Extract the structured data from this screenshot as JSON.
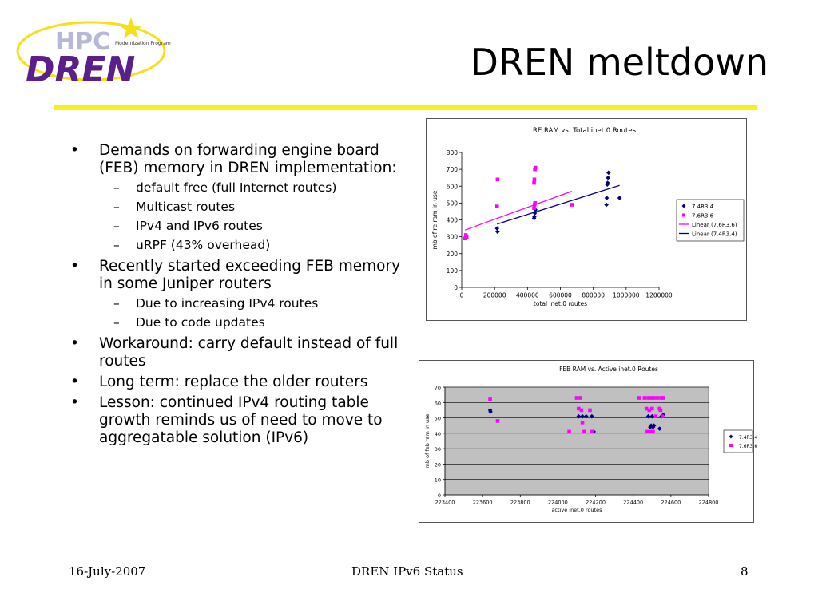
{
  "slide": {
    "title": "DREN meltdown",
    "logo": {
      "text_main": "DREN",
      "text_back": "HPC",
      "text_small": "Modernization Program"
    },
    "bullets": [
      {
        "text": "Demands on forwarding engine board (FEB) memory in DREN implementation:",
        "sub": [
          "default free (full Internet routes)",
          "Multicast routes",
          "IPv4 and IPv6 routes",
          "uRPF (43% overhead)"
        ]
      },
      {
        "text": "Recently started exceeding FEB memory in some Juniper routers",
        "sub": [
          "Due to increasing IPv4 routes",
          "Due to code updates"
        ]
      },
      {
        "text": "Workaround:  carry default instead of full routes",
        "sub": []
      },
      {
        "text": "Long term: replace the older routers",
        "sub": []
      },
      {
        "text": "Lesson: continued IPv4 routing table growth reminds us of need to move to aggregatable solution (IPv6)",
        "sub": []
      }
    ],
    "bullet_symbol": "•",
    "sub_symbol": "–",
    "footer": {
      "date": "16-July-2007",
      "center": "DREN IPv6 Status",
      "page": "8"
    },
    "colors": {
      "accent_rule": "#f5f21b",
      "logo_purple": "#5a1f8a",
      "series_1": "#000080",
      "series_2": "#ff00ff",
      "plot_bg_chart2": "#c0c0c0"
    }
  },
  "chart_data": [
    {
      "type": "scatter",
      "title": "RE RAM vs. Total inet.0 Routes",
      "xlabel": "total inet.0 routes",
      "ylabel": "mb of re ram in use",
      "xlim": [
        0,
        1200000
      ],
      "ylim": [
        0,
        800
      ],
      "x_ticks": [
        "0",
        "200000",
        "400000",
        "600000",
        "800000",
        "1000000",
        "1200000"
      ],
      "y_ticks": [
        "0",
        "100",
        "200",
        "300",
        "400",
        "500",
        "600",
        "700",
        "800"
      ],
      "grid": false,
      "legend_position": "right",
      "series": [
        {
          "name": "7.4R3.4",
          "marker": "diamond",
          "color": "#000080",
          "points": [
            [
              215000,
              350
            ],
            [
              218000,
              330
            ],
            [
              440000,
              410
            ],
            [
              442000,
              420
            ],
            [
              445000,
              440
            ],
            [
              448000,
              460
            ],
            [
              880000,
              490
            ],
            [
              882000,
              530
            ],
            [
              885000,
              610
            ],
            [
              887000,
              620
            ],
            [
              890000,
              650
            ],
            [
              893000,
              680
            ],
            [
              960000,
              530
            ]
          ]
        },
        {
          "name": "7.6R3.6",
          "marker": "square",
          "color": "#ff00ff",
          "points": [
            [
              20000,
              290
            ],
            [
              25000,
              310
            ],
            [
              30000,
              300
            ],
            [
              215000,
              480
            ],
            [
              218000,
              640
            ],
            [
              440000,
              620
            ],
            [
              442000,
              640
            ],
            [
              445000,
              700
            ],
            [
              448000,
              710
            ],
            [
              440000,
              470
            ],
            [
              443000,
              490
            ],
            [
              446000,
              500
            ],
            [
              670000,
              490
            ]
          ]
        },
        {
          "name": "Linear (7.6R3.6)",
          "type": "line",
          "color": "#ff00ff",
          "points": [
            [
              20000,
              340
            ],
            [
              670000,
              570
            ]
          ]
        },
        {
          "name": "Linear (7.4R3.4)",
          "type": "line",
          "color": "#000080",
          "points": [
            [
              215000,
              375
            ],
            [
              960000,
              605
            ]
          ]
        }
      ]
    },
    {
      "type": "scatter",
      "title": "FEB RAM vs. Active inet.0 Routes",
      "xlabel": "active inet.0 routes",
      "ylabel": "mb of feb ram in use",
      "xlim": [
        223400,
        224800
      ],
      "ylim": [
        0,
        70
      ],
      "x_ticks": [
        "223400",
        "223600",
        "223800",
        "224000",
        "224200",
        "224400",
        "224600",
        "224800"
      ],
      "y_ticks": [
        "0",
        "10",
        "20",
        "30",
        "40",
        "50",
        "60",
        "70"
      ],
      "grid": true,
      "legend_position": "right",
      "series": [
        {
          "name": "7.4R3.4",
          "marker": "diamond",
          "color": "#000080",
          "points": [
            [
              223640,
              55
            ],
            [
              223642,
              54
            ],
            [
              224110,
              51
            ],
            [
              224130,
              51
            ],
            [
              224150,
              51
            ],
            [
              224180,
              51
            ],
            [
              224190,
              41
            ],
            [
              224480,
              51
            ],
            [
              224490,
              44
            ],
            [
              224495,
              45
            ],
            [
              224500,
              51
            ],
            [
              224505,
              44
            ],
            [
              224510,
              45
            ],
            [
              224540,
              43
            ],
            [
              224550,
              51
            ],
            [
              224560,
              52
            ]
          ]
        },
        {
          "name": "7.6R3.6",
          "marker": "square",
          "color": "#ff00ff",
          "points": [
            [
              223640,
              62
            ],
            [
              223680,
              48
            ],
            [
              224060,
              41
            ],
            [
              224100,
              63
            ],
            [
              224110,
              56
            ],
            [
              224120,
              63
            ],
            [
              224125,
              55
            ],
            [
              224130,
              47
            ],
            [
              224140,
              41
            ],
            [
              224170,
              55
            ],
            [
              224180,
              41
            ],
            [
              224430,
              63
            ],
            [
              224460,
              63
            ],
            [
              224470,
              56
            ],
            [
              224475,
              41
            ],
            [
              224480,
              63
            ],
            [
              224485,
              55
            ],
            [
              224490,
              41
            ],
            [
              224495,
              63
            ],
            [
              224500,
              56
            ],
            [
              224505,
              41
            ],
            [
              224510,
              63
            ],
            [
              224520,
              51
            ],
            [
              224530,
              63
            ],
            [
              224540,
              56
            ],
            [
              224545,
              55
            ],
            [
              224550,
              63
            ],
            [
              224555,
              51
            ],
            [
              224560,
              63
            ]
          ]
        }
      ]
    }
  ]
}
